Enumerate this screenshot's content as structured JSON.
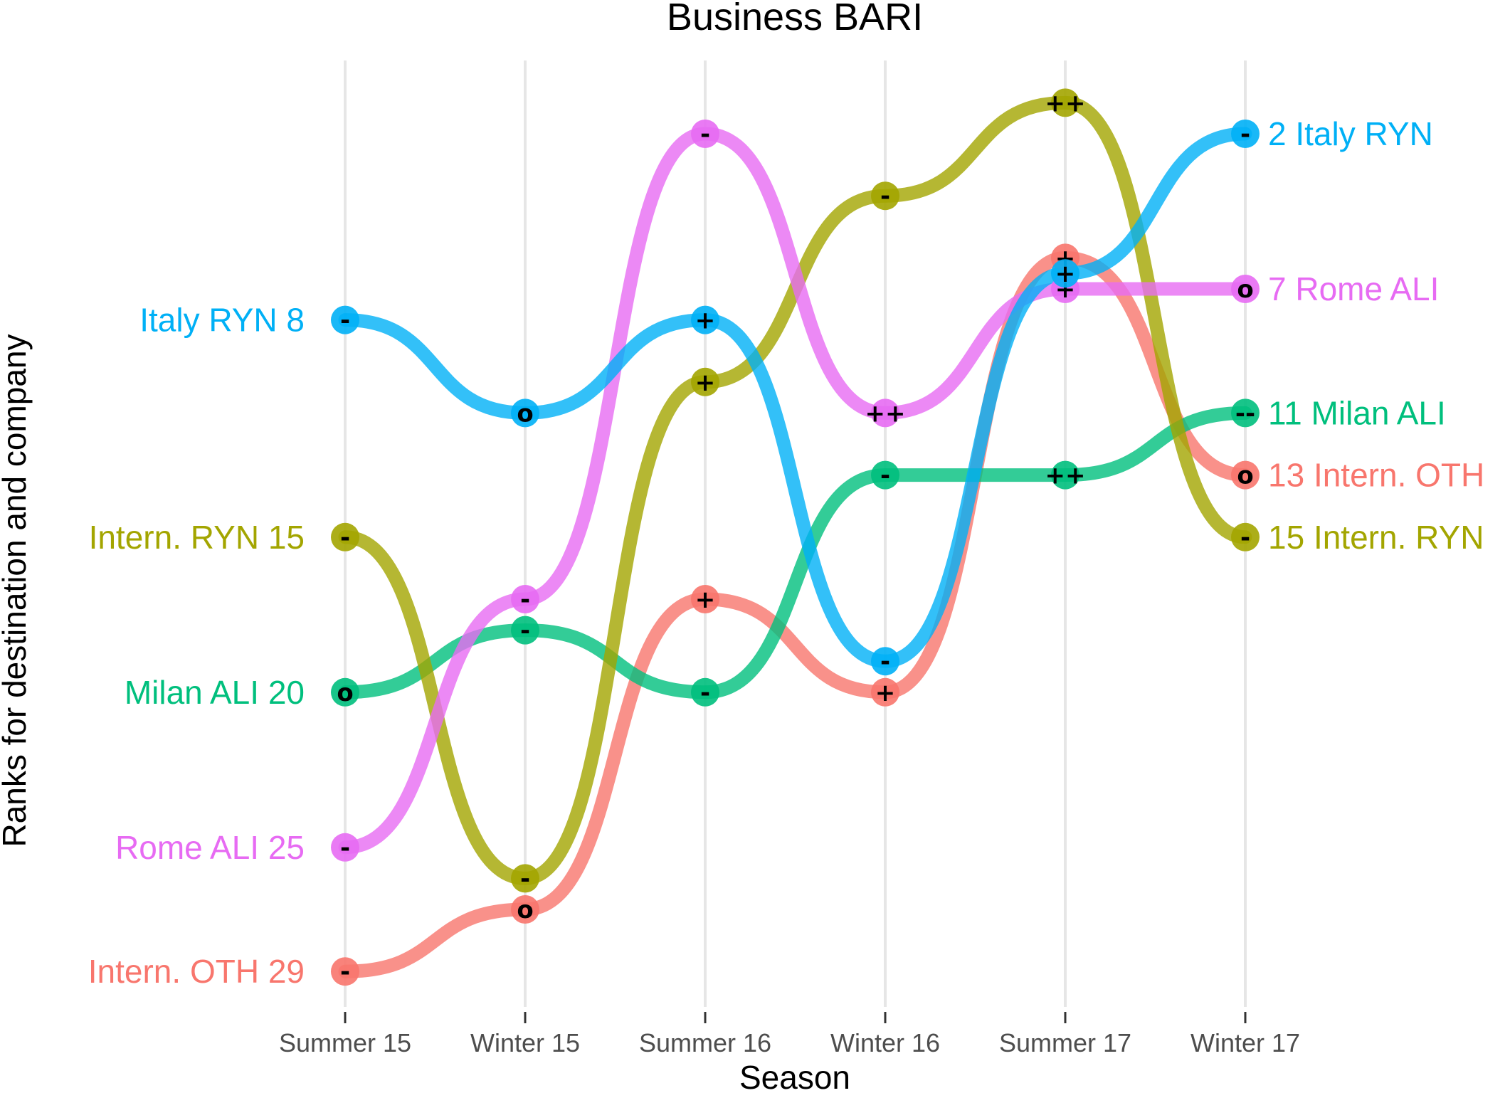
{
  "chart_data": {
    "type": "line",
    "title": "Business BARI",
    "xlabel": "Season",
    "ylabel": "Ranks for destination and company",
    "categories": [
      "Summer 15",
      "Winter 15",
      "Summer 16",
      "Winter 16",
      "Summer 17",
      "Winter 17"
    ],
    "grid": "vertical",
    "series": [
      {
        "name": "Intern. OTH",
        "color": "#F8766D",
        "ranks": [
          29,
          27,
          17,
          20,
          6,
          13
        ],
        "markers": [
          "-",
          "o",
          "+",
          "+",
          "+",
          "o"
        ],
        "start_label": "Intern. OTH  29",
        "end_label": "13  Intern. OTH"
      },
      {
        "name": "Milan ALI",
        "color": "#00BF7D",
        "ranks": [
          20,
          18,
          20,
          13,
          13,
          11
        ],
        "markers": [
          "o",
          "-",
          "-",
          "-",
          "++",
          "--"
        ],
        "start_label": "Milan ALI  20",
        "end_label": "11  Milan ALI"
      },
      {
        "name": "Intern. RYN",
        "color": "#A3A500",
        "ranks": [
          15,
          26,
          10,
          4,
          1,
          15
        ],
        "markers": [
          "-",
          "-",
          "+",
          "-",
          "++",
          "-"
        ],
        "start_label": "Intern. RYN  15",
        "end_label": "15  Intern. RYN"
      },
      {
        "name": "Rome ALI",
        "color": "#E76BF3",
        "ranks": [
          25,
          17,
          2,
          11,
          7,
          7
        ],
        "markers": [
          "-",
          "-",
          "-",
          "++",
          "+",
          "o"
        ],
        "start_label": "Rome ALI  25",
        "end_label": "7  Rome ALI"
      },
      {
        "name": "Italy RYN",
        "color": "#00B0F6",
        "ranks": [
          8,
          11,
          8,
          19,
          6.5,
          2
        ],
        "markers": [
          "-",
          "o",
          "+",
          "-",
          "+",
          "-"
        ],
        "start_label": "Italy RYN  8",
        "end_label": "2  Italy RYN"
      }
    ]
  }
}
